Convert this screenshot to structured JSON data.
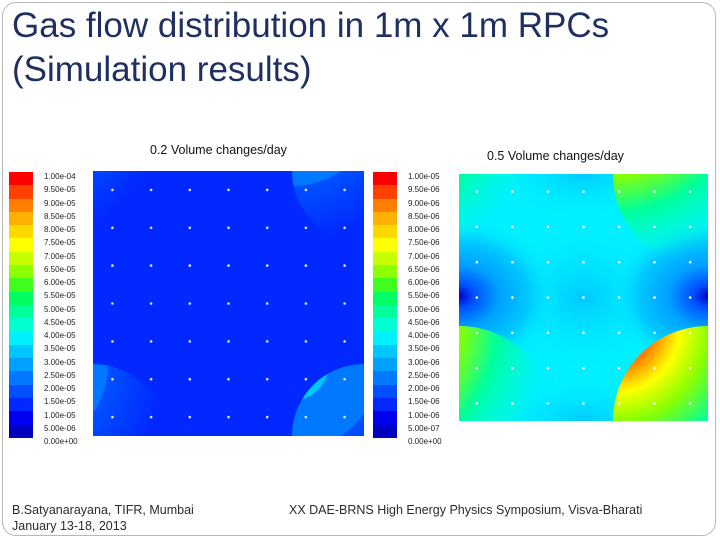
{
  "slide": {
    "title_line1": "Gas flow distribution in 1m x 1m RPCs",
    "title_line2": "(Simulation results)"
  },
  "left_panel": {
    "caption": "0.2 Volume changes/day",
    "scale_labels": [
      "1.00e-04",
      "9.50e-05",
      "9.00e-05",
      "8.50e-05",
      "8.00e-05",
      "7.50e-05",
      "7.00e-05",
      "6.50e-05",
      "6.00e-05",
      "5.50e-05",
      "5.00e-05",
      "4.50e-05",
      "4.00e-05",
      "3.50e-05",
      "3.00e-05",
      "2.50e-05",
      "2.00e-05",
      "1.50e-05",
      "1.00e-05",
      "5.00e-06",
      "0.00e+00"
    ]
  },
  "right_panel": {
    "caption": "0.5 Volume changes/day",
    "scale_labels": [
      "1.00e-05",
      "9.50e-06",
      "9.00e-06",
      "8.50e-06",
      "8.00e-06",
      "7.50e-06",
      "7.00e-06",
      "6.50e-06",
      "6.00e-06",
      "5.50e-06",
      "5.00e-06",
      "4.50e-06",
      "4.00e-06",
      "3.50e-06",
      "3.00e-06",
      "2.50e-06",
      "2.00e-06",
      "1.50e-06",
      "1.00e-06",
      "5.00e-07",
      "0.00e+00"
    ]
  },
  "colormap": [
    "#ff0000",
    "#ff4000",
    "#ff8000",
    "#ffb000",
    "#ffd800",
    "#ffff00",
    "#c8ff00",
    "#8cff00",
    "#40ff20",
    "#00ff60",
    "#00ff9c",
    "#00ffd0",
    "#00f0ff",
    "#00c8ff",
    "#00a0ff",
    "#0078ff",
    "#0050ff",
    "#0028ff",
    "#0000f0",
    "#0000c0"
  ],
  "footer": {
    "author": "B.Satyanarayana, TIFR, Mumbai",
    "date": "January 13-18, 2013",
    "event": "XX DAE-BRNS High Energy Physics Symposium, Visva-Bharati"
  }
}
